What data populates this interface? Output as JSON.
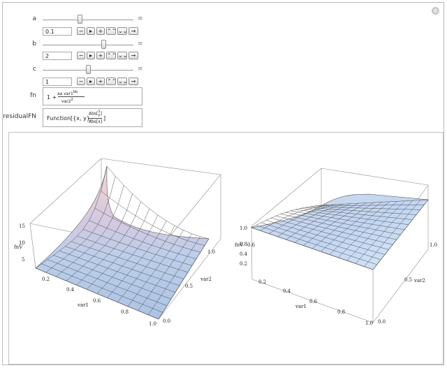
{
  "window": {
    "settings_icon": "gear-icon"
  },
  "controls": [
    {
      "id": "a",
      "label": "a",
      "value": "0.1",
      "fraction": 0.41
    },
    {
      "id": "b",
      "label": "b",
      "value": "2",
      "fraction": 0.67
    },
    {
      "id": "c",
      "label": "c",
      "value": "1",
      "fraction": 0.5
    }
  ],
  "button_icons": [
    "minus-icon",
    "play-icon",
    "plus-icon",
    "faster-icon",
    "slower-icon",
    "direction-icon"
  ],
  "fn": {
    "label": "fn",
    "prefix": "1 +",
    "numerator": "aa var1",
    "numerator_exp": "bb",
    "denominator": "var2",
    "denominator_exp": "2"
  },
  "residualFN": {
    "label": "residualFN",
    "prefix": "Function",
    "args": "[{x, y},",
    "num": "Abs[",
    "num_frac_top": "1",
    "num_frac_bot": "y",
    "num_close": "]",
    "den": "Abs[x]",
    "suffix": "]"
  },
  "plots": {
    "left": {
      "zlabel": "fnV",
      "z_ticks": [
        "15",
        "10",
        "5"
      ],
      "xlabel": "var1",
      "x_ticks": [
        "0.2",
        "0.4",
        "0.6",
        "0.8",
        "1.0"
      ],
      "ylabel": "var2",
      "y_ticks": [
        "1.0",
        "0.5",
        "0.0"
      ]
    },
    "right": {
      "zlabel": "fnV",
      "z_ticks": [
        "1.0",
        "0.8",
        "0.6",
        "0.4",
        "0.2"
      ],
      "xlabel": "var1",
      "x_ticks": [
        "0.2",
        "0.4",
        "0.6",
        "0.8",
        "1.0"
      ],
      "ylabel": "var2",
      "y_ticks": [
        "1.0",
        "0.5",
        "0.0"
      ]
    },
    "surface_color": "#b9d3f2",
    "surface_warm": "#f2d6cf"
  }
}
